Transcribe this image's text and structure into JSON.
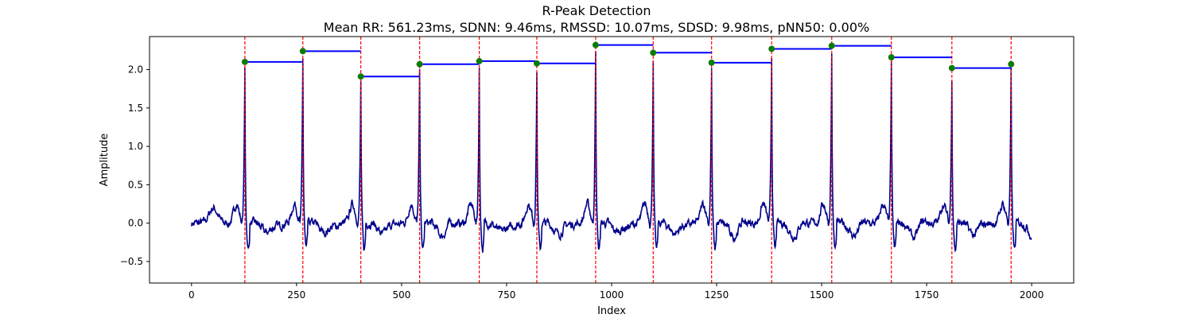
{
  "chart_data": {
    "type": "line",
    "title": "R-Peak Detection",
    "subtitle": "Mean RR: 561.23ms, SDNN: 9.46ms, RMSSD: 10.07ms, SDSD: 9.98ms, pNN50: 0.00%",
    "xlabel": "Index",
    "ylabel": "Amplitude",
    "xlim": [
      -100,
      2100
    ],
    "ylim": [
      -0.78,
      2.43
    ],
    "xticks": [
      0,
      250,
      500,
      750,
      1000,
      1250,
      1500,
      1750,
      2000
    ],
    "yticks": [
      -0.5,
      0.0,
      0.5,
      1.0,
      1.5,
      2.0
    ],
    "xtick_labels": [
      "0",
      "250",
      "500",
      "750",
      "1000",
      "1250",
      "1500",
      "1750",
      "2000"
    ],
    "ytick_labels": [
      "−0.5",
      "0.0",
      "0.5",
      "1.0",
      "1.5",
      "2.0"
    ],
    "grid": false,
    "signal": {
      "color": "#00008b",
      "length": 2000,
      "baseline": 0.0,
      "noise_amplitude": 0.08
    },
    "r_peaks": {
      "color": "#008000",
      "line_color": "#ff0000",
      "indices": [
        127,
        265,
        403,
        543,
        685,
        822,
        962,
        1099,
        1238,
        1381,
        1524,
        1666,
        1810,
        1951
      ],
      "amplitudes": [
        2.1,
        2.24,
        1.91,
        2.07,
        2.11,
        2.08,
        2.32,
        2.22,
        2.09,
        2.27,
        2.31,
        2.16,
        2.02,
        2.07
      ]
    },
    "rr_segments": {
      "color": "#0000ff"
    }
  }
}
